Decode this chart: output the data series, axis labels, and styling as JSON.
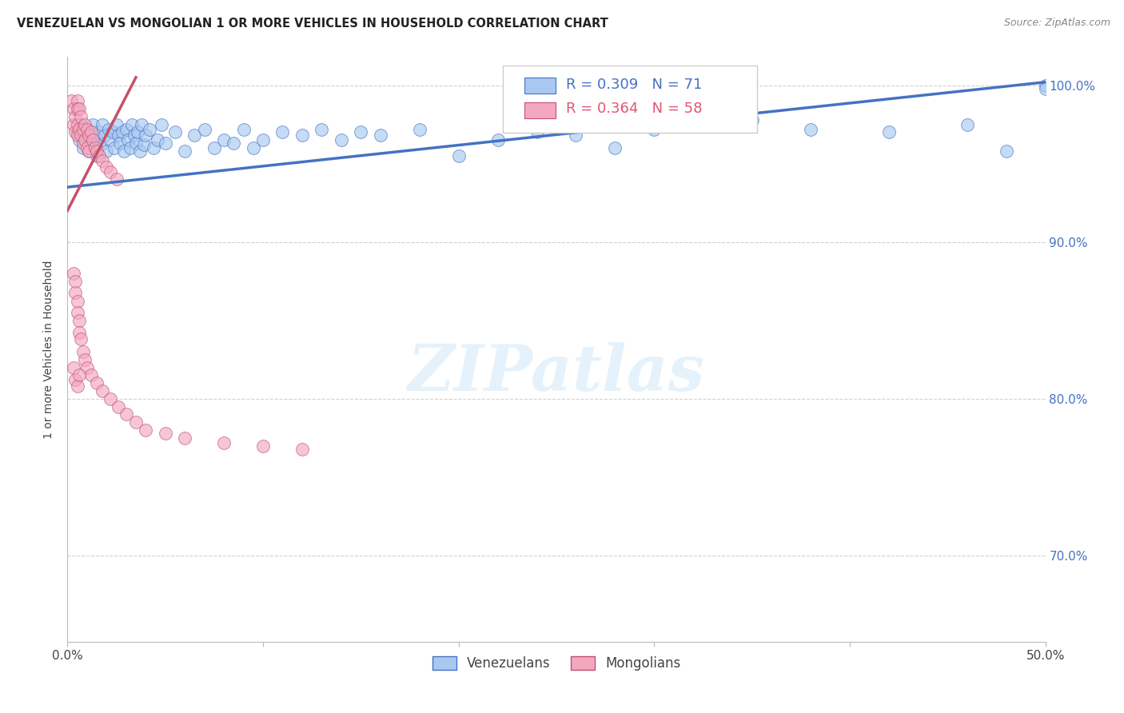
{
  "title": "VENEZUELAN VS MONGOLIAN 1 OR MORE VEHICLES IN HOUSEHOLD CORRELATION CHART",
  "source": "Source: ZipAtlas.com",
  "ylabel": "1 or more Vehicles in Household",
  "xlim": [
    0.0,
    0.5
  ],
  "ylim": [
    0.645,
    1.018
  ],
  "xticks": [
    0.0,
    0.1,
    0.2,
    0.3,
    0.4,
    0.5
  ],
  "xticklabels": [
    "0.0%",
    "",
    "",
    "",
    "",
    "50.0%"
  ],
  "yticks_right": [
    0.7,
    0.8,
    0.9,
    1.0
  ],
  "yticklabels_right": [
    "70.0%",
    "80.0%",
    "90.0%",
    "100.0%"
  ],
  "venezuelan_color": "#a8c8f0",
  "venezuelan_edge": "#4472c4",
  "mongolian_color": "#f4a8c0",
  "mongolian_edge": "#c05070",
  "trendline_ven_color": "#4472c4",
  "trendline_mon_color": "#c8506a",
  "legend_R_ven": "R = 0.309",
  "legend_N_ven": "N = 71",
  "legend_R_mon": "R = 0.364",
  "legend_N_mon": "N = 58",
  "ven_legend_color": "#4472c4",
  "mon_legend_color": "#e05575",
  "background_color": "#ffffff",
  "grid_color": "#cccccc",
  "title_fontsize": 10.5,
  "source_fontsize": 9,
  "tick_fontsize": 11,
  "legend_fontsize": 13,
  "ylabel_fontsize": 10,
  "watermark_text": "ZIPatlas",
  "ven_trendline_x": [
    0.0,
    0.5
  ],
  "ven_trendline_y": [
    0.935,
    1.002
  ],
  "mon_trendline_x": [
    0.0,
    0.035
  ],
  "mon_trendline_y": [
    0.92,
    1.005
  ],
  "ven_x": [
    0.005,
    0.006,
    0.007,
    0.008,
    0.009,
    0.01,
    0.011,
    0.012,
    0.013,
    0.014,
    0.015,
    0.016,
    0.017,
    0.018,
    0.019,
    0.02,
    0.021,
    0.022,
    0.023,
    0.024,
    0.025,
    0.026,
    0.027,
    0.028,
    0.029,
    0.03,
    0.031,
    0.032,
    0.033,
    0.034,
    0.035,
    0.036,
    0.037,
    0.038,
    0.039,
    0.04,
    0.042,
    0.044,
    0.046,
    0.048,
    0.05,
    0.055,
    0.06,
    0.065,
    0.07,
    0.075,
    0.08,
    0.085,
    0.09,
    0.095,
    0.1,
    0.11,
    0.12,
    0.13,
    0.14,
    0.15,
    0.16,
    0.18,
    0.2,
    0.22,
    0.24,
    0.26,
    0.28,
    0.3,
    0.35,
    0.38,
    0.42,
    0.46,
    0.48,
    0.5,
    0.5
  ],
  "ven_y": [
    0.97,
    0.965,
    0.975,
    0.96,
    0.968,
    0.972,
    0.958,
    0.963,
    0.975,
    0.967,
    0.955,
    0.97,
    0.962,
    0.975,
    0.968,
    0.958,
    0.972,
    0.965,
    0.97,
    0.96,
    0.975,
    0.968,
    0.963,
    0.97,
    0.958,
    0.972,
    0.965,
    0.96,
    0.975,
    0.968,
    0.963,
    0.97,
    0.958,
    0.975,
    0.962,
    0.968,
    0.972,
    0.96,
    0.965,
    0.975,
    0.963,
    0.97,
    0.958,
    0.968,
    0.972,
    0.96,
    0.965,
    0.963,
    0.972,
    0.96,
    0.965,
    0.97,
    0.968,
    0.972,
    0.965,
    0.97,
    0.968,
    0.972,
    0.955,
    0.965,
    0.97,
    0.968,
    0.96,
    0.972,
    0.978,
    0.972,
    0.97,
    0.975,
    0.958,
    1.0,
    0.998
  ],
  "mon_x": [
    0.002,
    0.003,
    0.003,
    0.004,
    0.004,
    0.005,
    0.005,
    0.005,
    0.005,
    0.006,
    0.006,
    0.007,
    0.007,
    0.008,
    0.008,
    0.009,
    0.009,
    0.01,
    0.01,
    0.011,
    0.011,
    0.012,
    0.013,
    0.014,
    0.015,
    0.016,
    0.018,
    0.02,
    0.022,
    0.025,
    0.003,
    0.004,
    0.004,
    0.005,
    0.005,
    0.006,
    0.006,
    0.007,
    0.008,
    0.009,
    0.01,
    0.012,
    0.015,
    0.018,
    0.022,
    0.026,
    0.03,
    0.035,
    0.04,
    0.05,
    0.06,
    0.08,
    0.1,
    0.12,
    0.003,
    0.004,
    0.005,
    0.006
  ],
  "mon_y": [
    0.99,
    0.985,
    0.975,
    0.98,
    0.97,
    0.99,
    0.985,
    0.975,
    0.968,
    0.985,
    0.972,
    0.98,
    0.968,
    0.972,
    0.963,
    0.975,
    0.965,
    0.972,
    0.96,
    0.968,
    0.958,
    0.97,
    0.965,
    0.96,
    0.958,
    0.955,
    0.952,
    0.948,
    0.945,
    0.94,
    0.88,
    0.875,
    0.868,
    0.862,
    0.855,
    0.85,
    0.842,
    0.838,
    0.83,
    0.825,
    0.82,
    0.815,
    0.81,
    0.805,
    0.8,
    0.795,
    0.79,
    0.785,
    0.78,
    0.778,
    0.775,
    0.772,
    0.77,
    0.768,
    0.82,
    0.812,
    0.808,
    0.815
  ]
}
